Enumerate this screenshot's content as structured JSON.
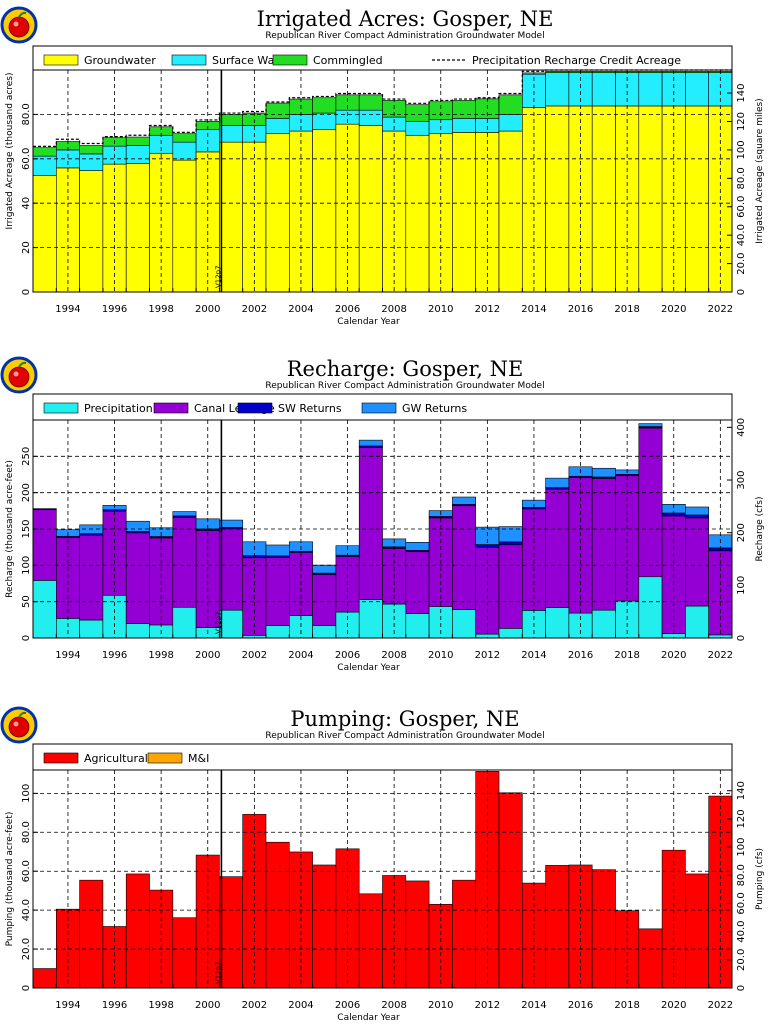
{
  "colors": {
    "groundwater": "#ffff00",
    "surface_water": "#22eeff",
    "commingled": "#22dd22",
    "precipitation": "#22eeee",
    "gw_returns": "#1e90ff",
    "sw_returns": "#0000cc",
    "canal_leakage": "#9400d3",
    "agricultural": "#ff0000",
    "mi": "#ffa500",
    "logo_red": "#e00000",
    "logo_ring": "#0033aa",
    "logo_ring2": "#ffcc00"
  },
  "version_marker": "V12p7",
  "chart_data": [
    {
      "type": "bar",
      "stacked": true,
      "title": "Irrigated Acres: Gosper, NE",
      "subtitle": "Republican River Compact Administration Groundwater Model",
      "xlabel": "Calendar Year",
      "ylabel": "Irrigated Acreage (thousand acres)",
      "ylabel_right": "Irrigated Acreage (square miles)",
      "ylim": [
        0,
        100
      ],
      "yticks": [
        0,
        20,
        40,
        60,
        80
      ],
      "ytick_labels": [
        "0",
        "20",
        "40",
        "60.0",
        "80.0"
      ],
      "ylim_right": [
        0,
        156.25
      ],
      "yticks_right": [
        0,
        20,
        40,
        60,
        80,
        100,
        120,
        140
      ],
      "ytick_labels_right": [
        "0",
        "20.0",
        "40.0",
        "60.0",
        "80.0",
        "100",
        "120",
        "140"
      ],
      "x": [
        1993,
        1994,
        1995,
        1996,
        1997,
        1998,
        1999,
        2000,
        2001,
        2002,
        2003,
        2004,
        2005,
        2006,
        2007,
        2008,
        2009,
        2010,
        2011,
        2012,
        2013,
        2014,
        2015,
        2016,
        2017,
        2018,
        2019,
        2020,
        2021,
        2022
      ],
      "xtick_labels": [
        "1994",
        "1996",
        "1998",
        "2000",
        "2002",
        "2004",
        "2006",
        "2008",
        "2010",
        "2012",
        "2014",
        "2016",
        "2018",
        "2020",
        "2022"
      ],
      "grid": true,
      "legend_position": "top",
      "series": [
        {
          "name": "Groundwater",
          "color_key": "groundwater",
          "values": [
            52.4,
            55.9,
            54.7,
            57.6,
            57.9,
            62.5,
            59.4,
            63.1,
            67.5,
            67.5,
            71.3,
            72.5,
            73.1,
            75.6,
            75.0,
            72.5,
            70.6,
            71.3,
            71.9,
            71.9,
            72.5,
            83.1,
            83.8,
            83.8,
            83.8,
            83.8,
            83.8,
            83.8,
            83.8,
            83.8
          ]
        },
        {
          "name": "Surface Water",
          "color_key": "surface_water",
          "values": [
            8.8,
            8.1,
            7.5,
            8.1,
            8.1,
            8.1,
            8.1,
            10.0,
            7.5,
            7.5,
            6.9,
            7.5,
            7.5,
            6.3,
            6.9,
            6.3,
            6.3,
            6.3,
            6.3,
            6.3,
            7.5,
            15.0,
            15.0,
            15.0,
            15.0,
            15.0,
            15.0,
            15.0,
            15.0,
            15.0
          ]
        },
        {
          "name": "Commingled",
          "color_key": "commingled",
          "values": [
            3.8,
            3.8,
            3.8,
            3.8,
            3.8,
            3.8,
            3.8,
            3.8,
            5.0,
            5.6,
            6.9,
            6.9,
            6.9,
            6.9,
            6.9,
            7.5,
            7.5,
            8.1,
            8.1,
            8.8,
            8.8,
            0.6,
            0.6,
            0.6,
            0.6,
            0.6,
            0.6,
            0.6,
            0.6,
            0.6
          ]
        },
        {
          "name": "Precipitation Recharge Credit Acreage",
          "line_style": "dashed",
          "values": [
            65.6,
            68.8,
            66.9,
            70.0,
            70.6,
            75.0,
            71.9,
            77.5,
            80.6,
            81.3,
            85.6,
            87.5,
            88.1,
            89.4,
            89.4,
            86.9,
            85.0,
            86.3,
            86.9,
            87.5,
            89.4,
            99.4,
            100.0,
            100.0,
            100.0,
            100.0,
            100.0,
            100.0,
            100.0,
            100.0
          ]
        }
      ]
    },
    {
      "type": "bar",
      "stacked": true,
      "title": "Recharge: Gosper, NE",
      "subtitle": "Republican River Compact Administration Groundwater Model",
      "xlabel": "Calendar Year",
      "ylabel": "Recharge (thousand acre-feet)",
      "ylabel_right": "Recharge (cfs)",
      "ylim": [
        0,
        300
      ],
      "yticks": [
        0,
        50,
        100,
        150,
        200,
        250
      ],
      "ytick_labels": [
        "0",
        "50",
        "100",
        "150",
        "200",
        "250"
      ],
      "ylim_right": [
        0,
        414
      ],
      "yticks_right": [
        0,
        100,
        200,
        300,
        400
      ],
      "ytick_labels_right": [
        "0",
        "100",
        "200",
        "300",
        "400"
      ],
      "x": [
        1993,
        1994,
        1995,
        1996,
        1997,
        1998,
        1999,
        2000,
        2001,
        2002,
        2003,
        2004,
        2005,
        2006,
        2007,
        2008,
        2009,
        2010,
        2011,
        2012,
        2013,
        2014,
        2015,
        2016,
        2017,
        2018,
        2019,
        2020,
        2021,
        2022
      ],
      "xtick_labels": [
        "1994",
        "1996",
        "1998",
        "2000",
        "2002",
        "2004",
        "2006",
        "2008",
        "2010",
        "2012",
        "2014",
        "2016",
        "2018",
        "2020",
        "2022"
      ],
      "grid": true,
      "legend_position": "top",
      "series": [
        {
          "name": "Precipitation",
          "color_key": "precipitation",
          "values": [
            79.3,
            27.0,
            24.7,
            58.8,
            19.7,
            18.0,
            42.3,
            14.3,
            38.3,
            3.7,
            17.0,
            30.7,
            17.3,
            35.7,
            53.0,
            46.7,
            33.7,
            43.3,
            39.0,
            5.3,
            13.3,
            38.0,
            41.7,
            34.3,
            38.3,
            51.0,
            84.3,
            6.0,
            44.0,
            4.3
          ]
        },
        {
          "name": "Canal Leakage",
          "color_key": "canal_leakage",
          "values": [
            97.3,
            111.0,
            117.0,
            115.7,
            125.0,
            119.7,
            123.7,
            133.7,
            112.0,
            106.7,
            94.0,
            86.7,
            70.0,
            76.3,
            209.3,
            76.7,
            85.0,
            122.0,
            143.0,
            119.3,
            115.0,
            139.7,
            163.3,
            186.3,
            181.3,
            172.3,
            204.7,
            162.0,
            121.3,
            115.7
          ]
        },
        {
          "name": "SW Returns",
          "color_key": "sw_returns",
          "values": [
            0.5,
            2.0,
            2.0,
            2.0,
            2.0,
            2.0,
            2.0,
            2.0,
            2.0,
            3.0,
            2.0,
            2.0,
            2.0,
            2.0,
            2.0,
            2.0,
            2.0,
            2.0,
            2.0,
            4.0,
            4.0,
            2.0,
            2.0,
            2.0,
            2.0,
            2.0,
            2.0,
            4.0,
            4.0,
            4.0
          ]
        },
        {
          "name": "GW Returns",
          "color_key": "gw_returns",
          "values": [
            1.0,
            9.0,
            12.0,
            6.0,
            14.0,
            12.0,
            6.0,
            14.0,
            10.0,
            19.0,
            15.0,
            13.0,
            11.0,
            13.0,
            8.0,
            11.0,
            11.0,
            8.0,
            10.0,
            24.0,
            21.0,
            10.0,
            13.0,
            13.0,
            12.0,
            6.0,
            4.0,
            12.0,
            11.0,
            18.0
          ]
        }
      ]
    },
    {
      "type": "bar",
      "stacked": true,
      "title": "Pumping: Gosper, NE",
      "subtitle": "Republican River Compact Administration Groundwater Model",
      "xlabel": "Calendar Year",
      "ylabel": "Pumping (thousand acre-feet)",
      "ylabel_right": "Pumping (cfs)",
      "ylim": [
        0,
        112
      ],
      "yticks": [
        0,
        20,
        40,
        60,
        80,
        100
      ],
      "ytick_labels": [
        "0",
        "20.0",
        "40.0",
        "60.0",
        "80.0",
        "100"
      ],
      "ylim_right": [
        0,
        154.7
      ],
      "yticks_right": [
        0,
        20,
        40,
        60,
        80,
        100,
        120,
        140
      ],
      "ytick_labels_right": [
        "0",
        "20.0",
        "40.0",
        "60.0",
        "80.0",
        "100",
        "120",
        "140"
      ],
      "x": [
        1993,
        1994,
        1995,
        1996,
        1997,
        1998,
        1999,
        2000,
        2001,
        2002,
        2003,
        2004,
        2005,
        2006,
        2007,
        2008,
        2009,
        2010,
        2011,
        2012,
        2013,
        2014,
        2015,
        2016,
        2017,
        2018,
        2019,
        2020,
        2021,
        2022
      ],
      "xtick_labels": [
        "1994",
        "1996",
        "1998",
        "2000",
        "2002",
        "2004",
        "2006",
        "2008",
        "2010",
        "2012",
        "2014",
        "2016",
        "2018",
        "2020",
        "2022"
      ],
      "grid": true,
      "legend_position": "top",
      "series": [
        {
          "name": "Agricultural",
          "color_key": "agricultural",
          "values": [
            10.0,
            40.5,
            55.4,
            31.6,
            58.6,
            50.3,
            36.1,
            68.3,
            57.2,
            89.2,
            74.9,
            69.9,
            63.2,
            71.5,
            48.4,
            57.8,
            55.0,
            43.0,
            55.4,
            111.3,
            100.3,
            53.9,
            63.0,
            63.2,
            60.8,
            39.7,
            30.4,
            70.8,
            58.6,
            98.6
          ]
        },
        {
          "name": "M&I",
          "color_key": "mi",
          "values": [
            0,
            0,
            0,
            0,
            0,
            0,
            0,
            0,
            0,
            0,
            0,
            0,
            0,
            0,
            0,
            0,
            0,
            0,
            0,
            0,
            0,
            0,
            0,
            0,
            0,
            0,
            0,
            0,
            0,
            0
          ]
        }
      ]
    }
  ]
}
